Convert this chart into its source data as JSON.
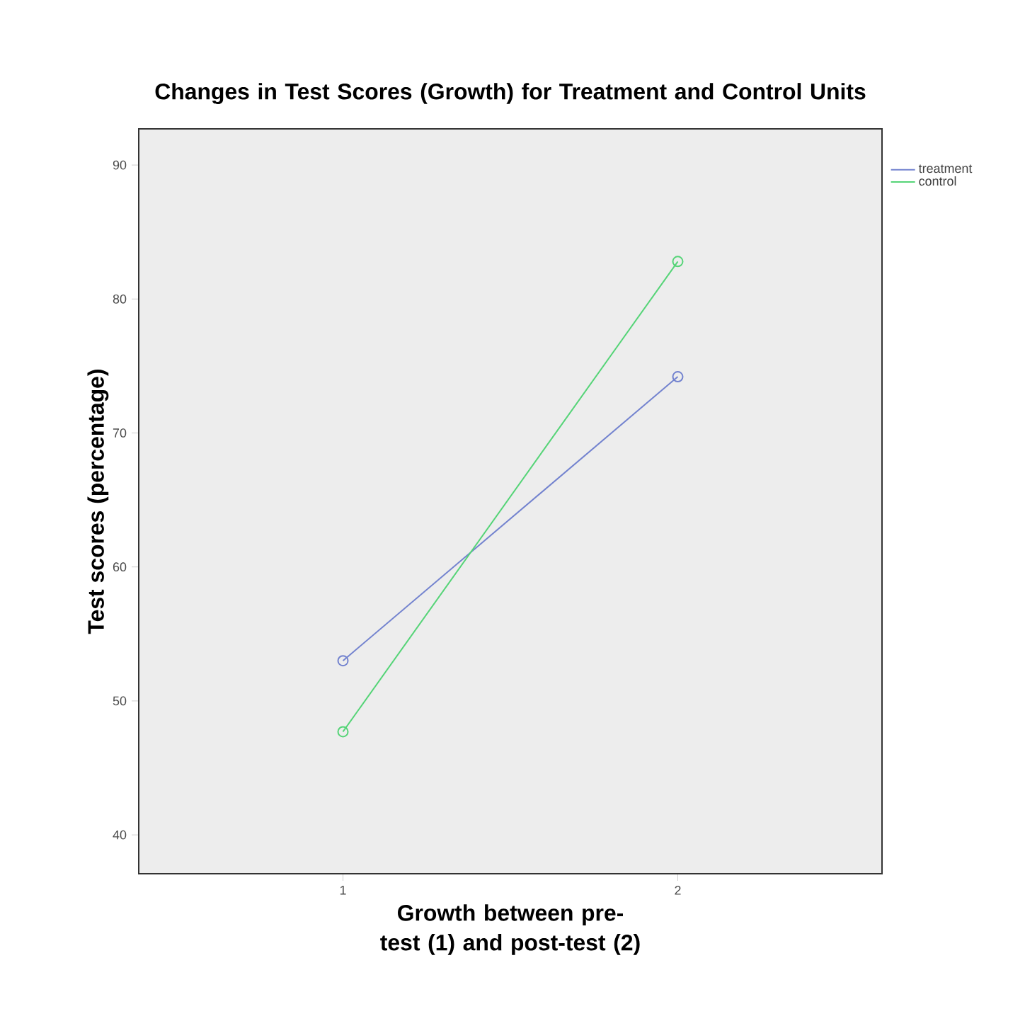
{
  "chart_data": {
    "type": "line",
    "title": "Changes in Test Scores (Growth) for Treatment and Control Units",
    "xlabel": "Growth between pre-test (1) and post-test (2)",
    "ylabel": "Test scores (percentage)",
    "x": [
      1,
      2
    ],
    "series": [
      {
        "name": "treatment",
        "color": "#7383cf",
        "values": [
          53.0,
          74.2
        ]
      },
      {
        "name": "control",
        "color": "#55d477",
        "values": [
          47.7,
          82.8
        ]
      }
    ],
    "xlim": [
      0.39,
      2.61
    ],
    "xticks": [
      1,
      2
    ],
    "ylim": [
      37.1,
      92.7
    ],
    "yticks": [
      40,
      50,
      60,
      70,
      80,
      90
    ],
    "marker": "circle",
    "line_style": "solid",
    "legend": "top right",
    "grid": false
  }
}
